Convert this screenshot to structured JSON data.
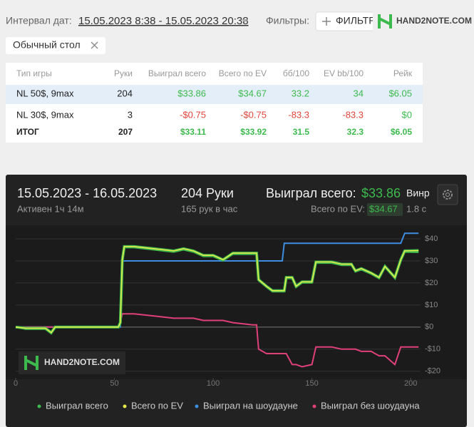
{
  "header": {
    "interval_label": "Интервал дат:",
    "interval_value": "15.05.2023 8:38 - 15.05.2023 20:38",
    "filters_label": "Фильтры:",
    "filter_button": "ФИЛЬТР",
    "logo": "HAND2NOTE.COM"
  },
  "tag": "Обычный стол",
  "table": {
    "columns": [
      "Тип игры",
      "Руки",
      "Выиграл всего",
      "Всего по EV",
      "бб/100",
      "EV bb/100",
      "Рейк"
    ],
    "rows": [
      [
        "NL 50$, 9max",
        "204",
        "$33.86",
        "$34.67",
        "33.2",
        "34",
        "$6.05"
      ],
      [
        "NL 30$, 9max",
        "3",
        "-$0.75",
        "-$0.75",
        "-83.3",
        "-83.3",
        "$0"
      ],
      [
        "ИТОГ",
        "207",
        "$33.11",
        "$33.92",
        "31.5",
        "32.3",
        "$6.05"
      ]
    ]
  },
  "card": {
    "date_range": "15.05.2023 - 16.05.2023",
    "active": "Активен 1ч 14м",
    "hands": "204 Руки",
    "rate": "165 рук в час",
    "won_label": "Выиграл всего:",
    "won_value": "$33.86",
    "ev_label": "Всего по EV:",
    "ev_value": "$34.67",
    "winrate_label": "Винр",
    "winrate_value": "1.8 с"
  },
  "chart_data": {
    "type": "line",
    "watermark": "HAND2NOTE.COM",
    "x": [
      0,
      5,
      15,
      18,
      20,
      35,
      52,
      53,
      54,
      55,
      60,
      70,
      80,
      85,
      90,
      95,
      100,
      105,
      110,
      120,
      122,
      123,
      127,
      130,
      135,
      136,
      137,
      140,
      142,
      145,
      150,
      152,
      160,
      165,
      170,
      172,
      175,
      180,
      184,
      187,
      192,
      195,
      197,
      204
    ],
    "series": [
      {
        "name": "Выиграл всего",
        "color": "#3dba4e",
        "values": [
          0,
          -1,
          -1,
          -3,
          0,
          0,
          0,
          2,
          30,
          36,
          36,
          35,
          34,
          35,
          34,
          32,
          32,
          30,
          33,
          33,
          33,
          21,
          18,
          16,
          16,
          16,
          22,
          22,
          18,
          20,
          20,
          29,
          29,
          28,
          28,
          25,
          26,
          24,
          22,
          27,
          22,
          30,
          34,
          33.86
        ]
      },
      {
        "name": "Всего по EV",
        "color": "#e8ea4c",
        "values": [
          0,
          -0.5,
          -0.5,
          -2.5,
          0,
          0,
          0,
          2,
          30.5,
          36.5,
          36.5,
          35.5,
          34.5,
          35.5,
          34.5,
          32.5,
          32.5,
          30.5,
          33.5,
          33.5,
          33.5,
          21.5,
          18.5,
          16.5,
          16.5,
          16.5,
          22.5,
          22.5,
          18.5,
          20.5,
          20.5,
          29.5,
          29.5,
          28.5,
          28.5,
          25.5,
          26.5,
          24.5,
          22.5,
          27.5,
          22.5,
          30.5,
          34.5,
          34.67
        ]
      },
      {
        "name": "Выиграл на шоудауне",
        "color": "#3d8ee0",
        "values": [
          0,
          0,
          0,
          0,
          0,
          0,
          0,
          0,
          30,
          30,
          30,
          30,
          30,
          30,
          30,
          30,
          30,
          30,
          30,
          30,
          30,
          30,
          30,
          30,
          30,
          38,
          38,
          38,
          38,
          38,
          38,
          38,
          38,
          38,
          38,
          38,
          38,
          38,
          38,
          38,
          38,
          38,
          42.5,
          42.5
        ]
      },
      {
        "name": "Выиграл без шоудауна",
        "color": "#e0407a",
        "values": [
          0,
          0,
          0,
          0,
          0,
          0,
          0,
          2,
          6,
          6,
          6,
          5,
          4,
          4,
          4,
          3,
          3,
          3,
          2,
          1,
          1,
          -10,
          -12,
          -12,
          -12,
          -12,
          -12,
          -17,
          -17,
          -18,
          -17,
          -9,
          -9,
          -10,
          -10,
          -10,
          -11,
          -11,
          -13,
          -13,
          -17,
          -9,
          -9,
          -9
        ]
      }
    ],
    "xlim": [
      0,
      205
    ],
    "xticks": [
      0,
      50,
      100,
      150,
      200
    ],
    "ylim": [
      -23,
      45.5
    ],
    "yticks": [
      {
        "value": 40,
        "label": "$40"
      },
      {
        "value": 30,
        "label": "$30"
      },
      {
        "value": 20,
        "label": "$20"
      },
      {
        "value": 10,
        "label": "$10"
      },
      {
        "value": 0,
        "label": "$0"
      },
      {
        "value": -10,
        "label": "-$10"
      },
      {
        "value": -20,
        "label": "-$20"
      }
    ],
    "grid": true,
    "legend": "bottom"
  }
}
